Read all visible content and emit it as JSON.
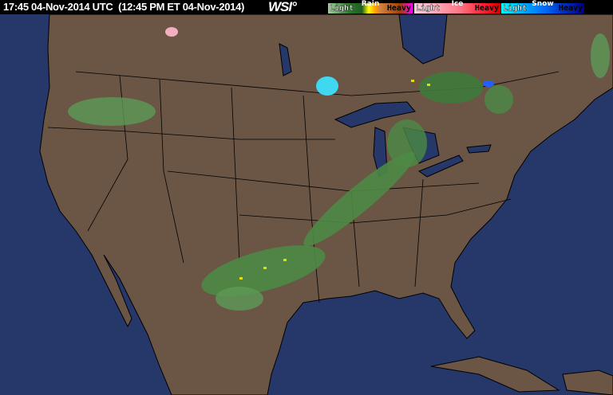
{
  "header": {
    "timestamp": "17:45 04-Nov-2014 UTC  (12:45 PM ET 04-Nov-2014)",
    "logo": "WSI°"
  },
  "legend": [
    {
      "title": "Rain",
      "light": "Light",
      "heavy": "Heavy",
      "colors": [
        "#9fd09a",
        "#2e7a2e",
        "#1f5c1f",
        "#ffff00",
        "#ffa000",
        "#d08040",
        "#a04000",
        "#ff00ff"
      ]
    },
    {
      "title": "Ice",
      "light": "Light",
      "heavy": "Heavy",
      "colors": [
        "#ffd0e0",
        "#ffa0b0",
        "#ff7080",
        "#ff4050",
        "#ff0000",
        "#c00000"
      ]
    },
    {
      "title": "Snow",
      "light": "Light",
      "heavy": "Heavy",
      "colors": [
        "#00ffff",
        "#00b0ff",
        "#0070ff",
        "#0040e0",
        "#0020a0",
        "#000080"
      ]
    }
  ],
  "colors": {
    "land": "#6b5545",
    "ocean": "#26386a",
    "lakes": "#26386a",
    "borders": "#000000"
  }
}
